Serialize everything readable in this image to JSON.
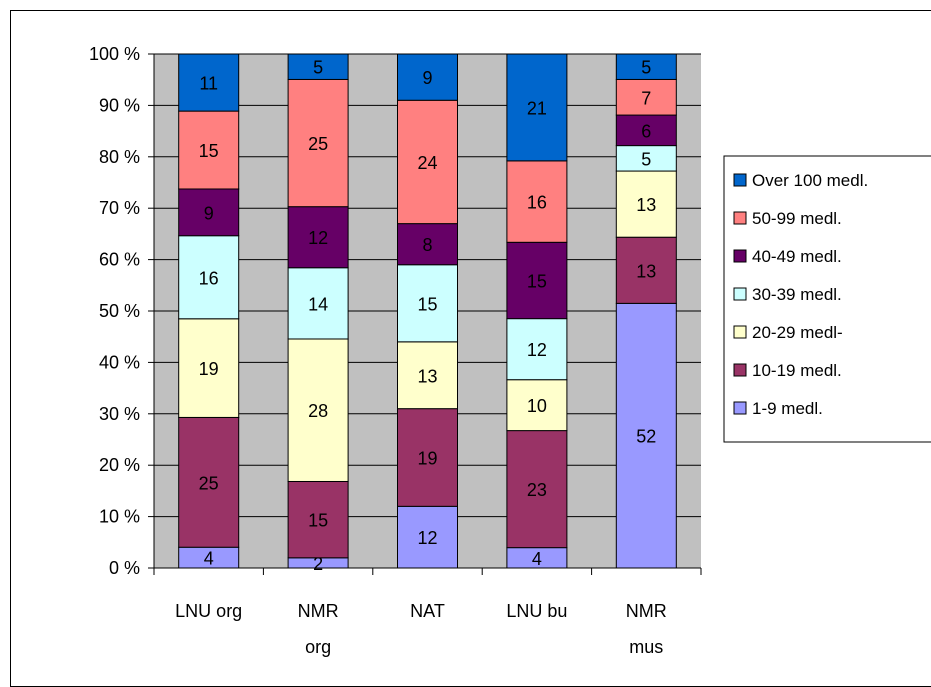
{
  "chart_data": {
    "type": "bar",
    "stacked": true,
    "percent_stacked": true,
    "title": "",
    "xlabel": "",
    "ylabel": "",
    "ylim": [
      0,
      100
    ],
    "y_ticks": [
      "0 %",
      "10 %",
      "20 %",
      "30 %",
      "40 %",
      "50 %",
      "60 %",
      "70 %",
      "80 %",
      "90 %",
      "100 %"
    ],
    "grid": true,
    "plot_background": "#c0c0c0",
    "legend_position": "right",
    "categories": [
      [
        "LNU org"
      ],
      [
        "NMR",
        "org"
      ],
      [
        "NAT"
      ],
      [
        "LNU bu"
      ],
      [
        "NMR",
        "mus"
      ]
    ],
    "series": [
      {
        "name": "1-9 medl.",
        "color": "#9999ff",
        "values": [
          4,
          2,
          12,
          4,
          52
        ]
      },
      {
        "name": "10-19 medl.",
        "color": "#993366",
        "values": [
          25,
          15,
          19,
          23,
          13
        ]
      },
      {
        "name": "20-29 medl-",
        "color": "#ffffcc",
        "values": [
          19,
          28,
          13,
          10,
          13
        ]
      },
      {
        "name": "30-39 medl.",
        "color": "#ccffff",
        "values": [
          16,
          14,
          15,
          12,
          5
        ]
      },
      {
        "name": "40-49 medl.",
        "color": "#660066",
        "values": [
          9,
          12,
          8,
          15,
          6
        ]
      },
      {
        "name": "50-99 medl.",
        "color": "#ff8080",
        "values": [
          15,
          25,
          24,
          16,
          7
        ]
      },
      {
        "name": "Over 100 medl.",
        "color": "#0066cc",
        "values": [
          11,
          5,
          9,
          21,
          5
        ]
      }
    ]
  }
}
